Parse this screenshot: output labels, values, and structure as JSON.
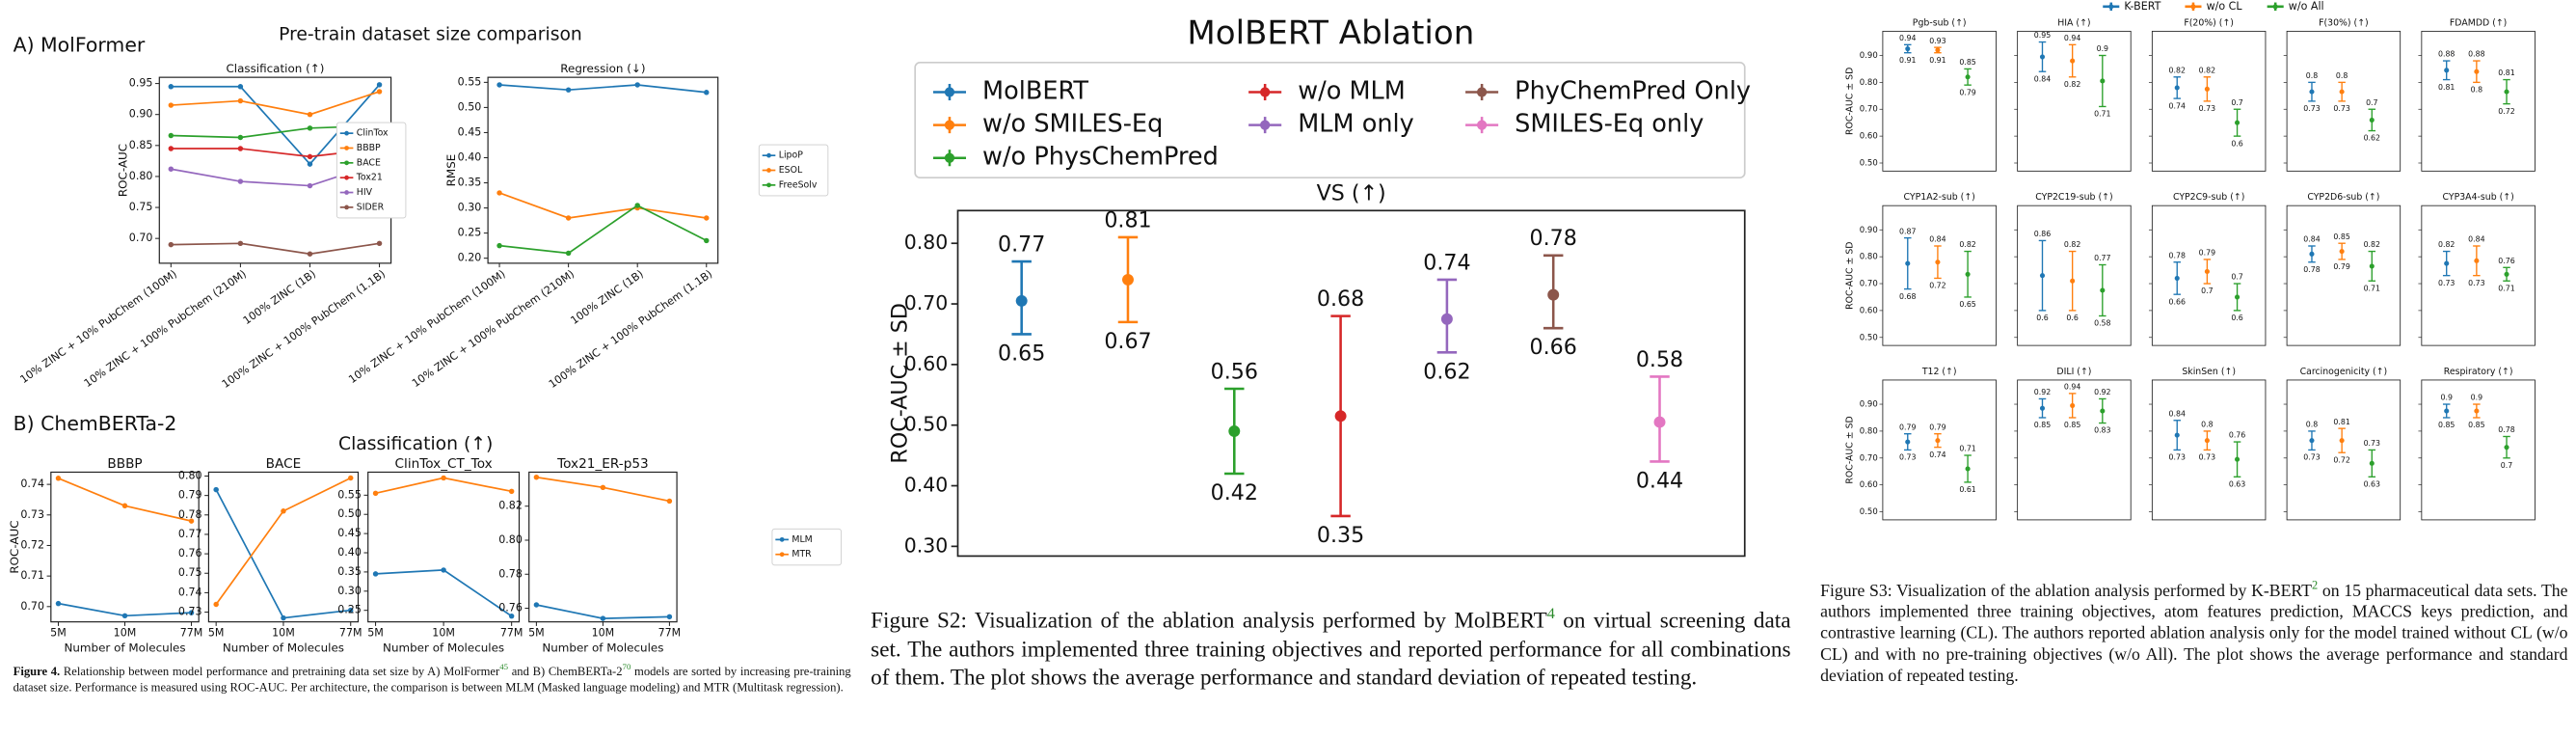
{
  "figure4": {
    "panel_a": "A) MolFormer",
    "panel_a_title": "Pre-train dataset size comparison",
    "panel_b": "B) ChemBERTa-2",
    "panel_b_title": "Classification (↑)",
    "caption": [
      {
        "text": "Figure 4.",
        "bold": true
      },
      {
        "text": " Relationship between model performance and pretraining data set size by A) MolFormer"
      },
      {
        "sup": "45"
      },
      {
        "text": " and B) ChemBERTa-2"
      },
      {
        "sup": "70"
      },
      {
        "text": " models are sorted by increasing pre-training dataset size. Performance is measured using ROC-AUC. Per architecture, the comparison is between MLM (Masked language modeling) and MTR (Multitask regression)."
      }
    ]
  },
  "figure_s2": {
    "caption": [
      {
        "text": "Figure S2: Visualization of the ablation analysis performed by MolBERT"
      },
      {
        "sup": "4"
      },
      {
        "text": " on virtual screening data set. The authors implemented three training objectives and reported performance for all combinations of them. The plot shows the average performance and standard deviation of repeated testing."
      }
    ]
  },
  "figure_s3": {
    "caption": [
      {
        "text": "Figure S3: Visualization of the ablation analysis performed by K-BERT"
      },
      {
        "sup": "2"
      },
      {
        "text": " on 15 pharmaceutical data sets. The authors implemented three training objectives, atom features prediction, MACCS keys prediction, and contrastive learning (CL). The authors reported ablation analysis only for the model trained without CL (w/o CL) and with no pre-training objectives (w/o All). The plot shows the average performance and standard deviation of repeated testing."
      }
    ]
  },
  "chart_data": [
    {
      "type": "line",
      "title": "Classification (↑)",
      "ylabel": "ROC-AUC",
      "categories": [
        "10% ZINC + 10% PubChem (100M)",
        "10% ZINC + 100% PubChem (210M)",
        "100% ZINC (1B)",
        "100% ZINC + 100% PubChem (1.1B)"
      ],
      "series": [
        {
          "name": "ClinTox",
          "color": "#1f77b4",
          "values": [
            0.945,
            0.945,
            0.82,
            0.948
          ]
        },
        {
          "name": "BBBP",
          "color": "#ff7f0e",
          "values": [
            0.915,
            0.922,
            0.9,
            0.937
          ]
        },
        {
          "name": "BACE",
          "color": "#2ca02c",
          "values": [
            0.866,
            0.863,
            0.878,
            0.882
          ]
        },
        {
          "name": "Tox21",
          "color": "#d62728",
          "values": [
            0.845,
            0.845,
            0.832,
            0.845
          ]
        },
        {
          "name": "HIV",
          "color": "#9467bd",
          "values": [
            0.812,
            0.792,
            0.785,
            0.822
          ]
        },
        {
          "name": "SIDER",
          "color": "#8c564b",
          "values": [
            0.69,
            0.692,
            0.675,
            0.692
          ]
        }
      ],
      "ylim": [
        0.66,
        0.96
      ],
      "yticks": [
        {
          "value": 0.7,
          "label": "0.70"
        },
        0.75,
        {
          "value": 0.8,
          "label": "0.80"
        },
        0.85,
        {
          "value": 0.9,
          "label": "0.90"
        },
        0.95
      ],
      "legend": "center right"
    },
    {
      "type": "line",
      "title": "Regression (↓)",
      "ylabel": "RMSE",
      "categories": [
        "10% ZINC + 10% PubChem (100M)",
        "10% ZINC + 100% PubChem (210M)",
        "100% ZINC (1B)",
        "100% ZINC + 100% PubChem (1.1B)"
      ],
      "series": [
        {
          "name": "LipoP",
          "color": "#1f77b4",
          "values": [
            0.545,
            0.535,
            0.545,
            0.53
          ]
        },
        {
          "name": "ESOL",
          "color": "#ff7f0e",
          "values": [
            0.33,
            0.28,
            0.3,
            0.28
          ]
        },
        {
          "name": "FreeSolv",
          "color": "#2ca02c",
          "values": [
            0.225,
            0.21,
            0.305,
            0.235
          ]
        }
      ],
      "ylim": [
        0.19,
        0.56
      ],
      "yticks": [
        {
          "value": 0.2,
          "label": "0.20"
        },
        0.25,
        {
          "value": 0.3,
          "label": "0.30"
        },
        0.35,
        {
          "value": 0.4,
          "label": "0.40"
        },
        0.45,
        {
          "value": 0.5,
          "label": "0.50"
        },
        0.55
      ],
      "legend": "outside right"
    },
    {
      "type": "line",
      "title": "BBBP",
      "ylabel": "ROC-AUC",
      "xlabel": "Number of Molecules",
      "categories": [
        "5M",
        "10M",
        "77M"
      ],
      "series": [
        {
          "name": "MLM",
          "color": "#1f77b4",
          "values": [
            0.701,
            0.697,
            0.698
          ]
        },
        {
          "name": "MTR",
          "color": "#ff7f0e",
          "values": [
            0.742,
            0.733,
            0.728
          ]
        }
      ],
      "ylim": [
        0.695,
        0.744
      ],
      "yticks": [
        {
          "value": 0.7,
          "label": "0.70"
        },
        0.71,
        0.72,
        0.73,
        0.74
      ]
    },
    {
      "type": "line",
      "title": "BACE",
      "xlabel": "Number of Molecules",
      "categories": [
        "5M",
        "10M",
        "77M"
      ],
      "series": [
        {
          "name": "MLM",
          "color": "#1f77b4",
          "values": [
            0.793,
            0.727,
            0.731
          ]
        },
        {
          "name": "MTR",
          "color": "#ff7f0e",
          "values": [
            0.734,
            0.782,
            0.799
          ]
        }
      ],
      "ylim": [
        0.725,
        0.802
      ],
      "yticks": [
        0.73,
        0.74,
        0.75,
        0.76,
        0.77,
        0.78,
        0.79,
        {
          "value": 0.8,
          "label": "0.80"
        }
      ]
    },
    {
      "type": "line",
      "title": "ClinTox_CT_Tox",
      "xlabel": "Number of Molecules",
      "categories": [
        "5M",
        "10M",
        "77M"
      ],
      "series": [
        {
          "name": "MLM",
          "color": "#1f77b4",
          "values": [
            0.345,
            0.355,
            0.235
          ]
        },
        {
          "name": "MTR",
          "color": "#ff7f0e",
          "values": [
            0.555,
            0.595,
            0.56
          ]
        }
      ],
      "ylim": [
        0.22,
        0.61
      ],
      "yticks": [
        0.25,
        {
          "value": 0.3,
          "label": "0.30"
        },
        0.35,
        {
          "value": 0.4,
          "label": "0.40"
        },
        0.45,
        {
          "value": 0.5,
          "label": "0.50"
        },
        0.55
      ]
    },
    {
      "type": "line",
      "title": "Tox21_ER-p53",
      "xlabel": "Number of Molecules",
      "categories": [
        "5M",
        "10M",
        "77M"
      ],
      "series": [
        {
          "name": "MLM",
          "color": "#1f77b4",
          "values": [
            0.762,
            0.754,
            0.755
          ]
        },
        {
          "name": "MTR",
          "color": "#ff7f0e",
          "values": [
            0.837,
            0.831,
            0.823
          ]
        }
      ],
      "ylim": [
        0.752,
        0.84
      ],
      "yticks": [
        0.76,
        0.78,
        {
          "value": 0.8,
          "label": "0.80"
        },
        0.82
      ],
      "legend": "outside right"
    },
    {
      "type": "errorbar",
      "title": "MolBERT Ablation",
      "subtitle": "VS (↑)",
      "ylabel": "ROC-AUC ± SD",
      "series": [
        {
          "name": "MolBERT",
          "color": "#1f77b4",
          "values": [
            0.705
          ],
          "upper": [
            0.77
          ],
          "lower": [
            0.65
          ]
        },
        {
          "name": "w/o SMILES-Eq",
          "color": "#ff7f0e",
          "values": [
            0.74
          ],
          "upper": [
            0.81
          ],
          "lower": [
            0.67
          ]
        },
        {
          "name": "w/o PhysChemPred",
          "color": "#2ca02c",
          "values": [
            0.49
          ],
          "upper": [
            0.56
          ],
          "lower": [
            0.42
          ]
        },
        {
          "name": "w/o MLM",
          "color": "#d62728",
          "values": [
            0.515
          ],
          "upper": [
            0.68
          ],
          "lower": [
            0.35
          ]
        },
        {
          "name": "MLM only",
          "color": "#9467bd",
          "values": [
            0.675
          ],
          "upper": [
            0.74
          ],
          "lower": [
            0.62
          ]
        },
        {
          "name": "PhyChemPred Only",
          "color": "#8c564b",
          "values": [
            0.715
          ],
          "upper": [
            0.78
          ],
          "lower": [
            0.66
          ]
        },
        {
          "name": "SMILES-Eq only",
          "color": "#e377c2",
          "values": [
            0.505
          ],
          "upper": [
            0.58
          ],
          "lower": [
            0.44
          ]
        }
      ],
      "ylim": [
        0.284,
        0.854
      ],
      "yticks": [
        {
          "value": 0.3,
          "label": "0.30"
        },
        {
          "value": 0.4,
          "label": "0.40"
        },
        {
          "value": 0.5,
          "label": "0.50"
        },
        {
          "value": 0.6,
          "label": "0.60"
        },
        {
          "value": 0.7,
          "label": "0.70"
        },
        {
          "value": 0.8,
          "label": "0.80"
        }
      ],
      "legend": "upper center",
      "legend_ncol": 3
    },
    {
      "type": "errorbar_panels",
      "ylabel": "ROC-AUC ± SD",
      "series": [
        {
          "name": "K-BERT",
          "color": "#1f77b4"
        },
        {
          "name": "w/o CL",
          "color": "#ff7f0e"
        },
        {
          "name": "w/o All",
          "color": "#2ca02c"
        }
      ],
      "ylim": [
        0.47,
        0.99
      ],
      "yticks": [
        {
          "value": 0.5,
          "label": "0.50"
        },
        {
          "value": 0.6,
          "label": "0.60"
        },
        {
          "value": 0.7,
          "label": "0.70"
        },
        {
          "value": 0.8,
          "label": "0.80"
        },
        {
          "value": 0.9,
          "label": "0.90"
        }
      ],
      "legend": "upper center",
      "panels": [
        {
          "title": "Pgb-sub (↑)",
          "values": [
            0.925,
            0.92,
            0.82
          ],
          "upper": [
            0.94,
            0.93,
            0.85
          ],
          "lower": [
            0.91,
            0.91,
            0.79
          ]
        },
        {
          "title": "HIA (↑)",
          "values": [
            0.895,
            0.88,
            0.805
          ],
          "upper": [
            0.95,
            0.94,
            0.9
          ],
          "lower": [
            0.84,
            0.82,
            0.71
          ]
        },
        {
          "title": "F(20%) (↑)",
          "values": [
            0.78,
            0.775,
            0.65
          ],
          "upper": [
            0.82,
            0.82,
            0.7
          ],
          "lower": [
            0.74,
            0.73,
            0.6
          ]
        },
        {
          "title": "F(30%) (↑)",
          "values": [
            0.765,
            0.765,
            0.66
          ],
          "upper": [
            0.8,
            0.8,
            0.7
          ],
          "lower": [
            0.73,
            0.73,
            0.62
          ]
        },
        {
          "title": "FDAMDD (↑)",
          "values": [
            0.845,
            0.84,
            0.765
          ],
          "upper": [
            0.88,
            0.88,
            0.81
          ],
          "lower": [
            0.81,
            0.8,
            0.72
          ]
        },
        {
          "title": "CYP1A2-sub (↑)",
          "values": [
            0.775,
            0.78,
            0.735
          ],
          "upper": [
            0.87,
            0.84,
            0.82
          ],
          "lower": [
            0.68,
            0.72,
            0.65
          ]
        },
        {
          "title": "CYP2C19-sub (↑)",
          "values": [
            0.73,
            0.71,
            0.675
          ],
          "upper": [
            0.86,
            0.82,
            0.77
          ],
          "lower": [
            0.6,
            0.6,
            0.58
          ]
        },
        {
          "title": "CYP2C9-sub (↑)",
          "values": [
            0.72,
            0.745,
            0.65
          ],
          "upper": [
            0.78,
            0.79,
            0.7
          ],
          "lower": [
            0.66,
            0.7,
            0.6
          ]
        },
        {
          "title": "CYP2D6-sub (↑)",
          "values": [
            0.81,
            0.82,
            0.765
          ],
          "upper": [
            0.84,
            0.85,
            0.82
          ],
          "lower": [
            0.78,
            0.79,
            0.71
          ]
        },
        {
          "title": "CYP3A4-sub (↑)",
          "values": [
            0.775,
            0.785,
            0.735
          ],
          "upper": [
            0.82,
            0.84,
            0.76
          ],
          "lower": [
            0.73,
            0.73,
            0.71
          ]
        },
        {
          "title": "T12 (↑)",
          "values": [
            0.76,
            0.765,
            0.66
          ],
          "upper": [
            0.79,
            0.79,
            0.71
          ],
          "lower": [
            0.73,
            0.74,
            0.61
          ]
        },
        {
          "title": "DILI (↑)",
          "values": [
            0.885,
            0.895,
            0.875
          ],
          "upper": [
            0.92,
            0.94,
            0.92
          ],
          "lower": [
            0.85,
            0.85,
            0.83
          ]
        },
        {
          "title": "SkinSen (↑)",
          "values": [
            0.785,
            0.765,
            0.695
          ],
          "upper": [
            0.84,
            0.8,
            0.76
          ],
          "lower": [
            0.73,
            0.73,
            0.63
          ]
        },
        {
          "title": "Carcinogenicity (↑)",
          "values": [
            0.765,
            0.765,
            0.68
          ],
          "upper": [
            0.8,
            0.81,
            0.73
          ],
          "lower": [
            0.73,
            0.72,
            0.63
          ]
        },
        {
          "title": "Respiratory (↑)",
          "values": [
            0.875,
            0.875,
            0.74
          ],
          "upper": [
            0.9,
            0.9,
            0.78
          ],
          "lower": [
            0.85,
            0.85,
            0.7
          ]
        }
      ]
    }
  ]
}
